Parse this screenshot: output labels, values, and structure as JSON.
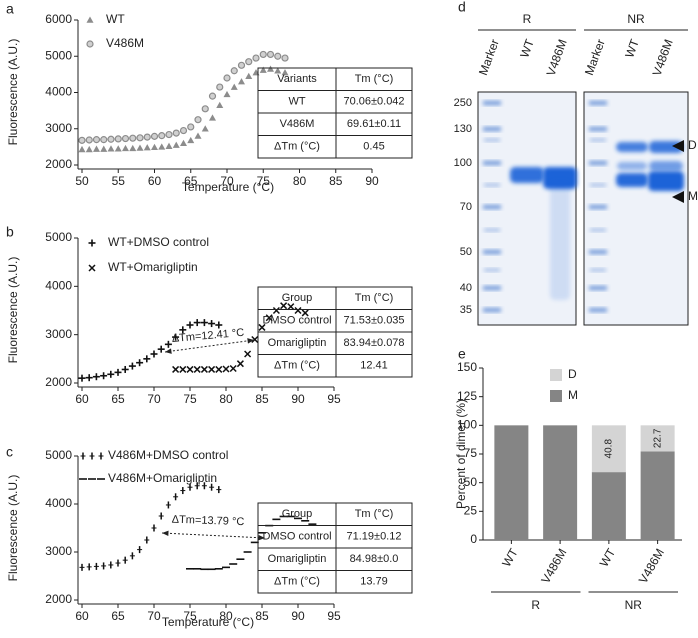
{
  "chart_data": [
    {
      "type": "scatter",
      "panel": "a",
      "xlabel": "Temperature (°C)",
      "ylabel": "Fluorescence (A.U.)",
      "xlim": [
        50,
        90
      ],
      "xticks": [
        50,
        55,
        60,
        65,
        70,
        75,
        80,
        85,
        90
      ],
      "ylim": [
        2000,
        6000
      ],
      "yticks": [
        2000,
        3000,
        4000,
        5000,
        6000
      ],
      "series": [
        {
          "name": "WT",
          "color": "#8c8c8c",
          "marker": "triangle",
          "x": [
            50,
            51,
            52,
            53,
            54,
            55,
            56,
            57,
            58,
            59,
            60,
            61,
            62,
            63,
            64,
            65,
            66,
            67,
            68,
            69,
            70,
            71,
            72,
            73,
            74,
            75,
            76,
            77,
            78
          ],
          "values": [
            2430,
            2430,
            2440,
            2440,
            2450,
            2450,
            2460,
            2460,
            2470,
            2480,
            2490,
            2500,
            2520,
            2550,
            2600,
            2680,
            2800,
            3000,
            3300,
            3650,
            3950,
            4150,
            4300,
            4450,
            4550,
            4620,
            4650,
            4600,
            4550
          ]
        },
        {
          "name": "V486M",
          "color": "#8c8c8c",
          "marker": "circle",
          "x": [
            50,
            51,
            52,
            53,
            54,
            55,
            56,
            57,
            58,
            59,
            60,
            61,
            62,
            63,
            64,
            65,
            66,
            67,
            68,
            69,
            70,
            71,
            72,
            73,
            74,
            75,
            76,
            77,
            78
          ],
          "values": [
            2680,
            2690,
            2700,
            2700,
            2710,
            2720,
            2730,
            2740,
            2750,
            2770,
            2790,
            2810,
            2840,
            2880,
            2950,
            3050,
            3250,
            3550,
            3900,
            4150,
            4400,
            4600,
            4750,
            4850,
            4950,
            5050,
            5050,
            5000,
            4950
          ]
        }
      ],
      "table": {
        "header": [
          "Variants",
          "Tm (°C)"
        ],
        "rows": [
          [
            "WT",
            "70.06±0.042"
          ],
          [
            "V486M",
            "69.61±0.11"
          ],
          [
            "ΔTm  (°C)",
            "0.45"
          ]
        ]
      }
    },
    {
      "type": "scatter",
      "panel": "b",
      "xlabel": "",
      "ylabel": "Fluorescence (A.U.)",
      "xlim": [
        60,
        95
      ],
      "xticks": [
        60,
        65,
        70,
        75,
        80,
        85,
        90,
        95
      ],
      "ylim": [
        2000,
        5000
      ],
      "yticks": [
        2000,
        3000,
        4000,
        5000
      ],
      "annotation": "ΔTm=12.41 °C",
      "series": [
        {
          "name": "WT+DMSO control",
          "color": "#111111",
          "marker": "plus",
          "x": [
            60,
            61,
            62,
            63,
            64,
            65,
            66,
            67,
            68,
            69,
            70,
            71,
            72,
            73,
            74,
            75,
            76,
            77,
            78,
            79
          ],
          "values": [
            2100,
            2110,
            2130,
            2150,
            2180,
            2220,
            2280,
            2350,
            2420,
            2500,
            2600,
            2700,
            2800,
            2950,
            3100,
            3200,
            3250,
            3250,
            3230,
            3200
          ]
        },
        {
          "name": "WT+Omarigliptin",
          "color": "#111111",
          "marker": "x",
          "x": [
            73,
            74,
            75,
            76,
            77,
            78,
            79,
            80,
            81,
            82,
            83,
            84,
            85,
            86,
            87,
            88,
            89,
            90,
            91
          ],
          "values": [
            2280,
            2280,
            2280,
            2280,
            2280,
            2280,
            2280,
            2290,
            2300,
            2400,
            2600,
            2900,
            3150,
            3350,
            3500,
            3600,
            3580,
            3500,
            3450
          ]
        }
      ],
      "table": {
        "header": [
          "Group",
          "Tm (°C)"
        ],
        "rows": [
          [
            "DMSO control",
            "71.53±0.035"
          ],
          [
            "Omarigliptin",
            "83.94±0.078"
          ],
          [
            "ΔTm (°C)",
            "12.41"
          ]
        ]
      }
    },
    {
      "type": "scatter",
      "panel": "c",
      "xlabel": "Temperature (°C)",
      "ylabel": "Fluorescence (A.U.)",
      "xlim": [
        60,
        95
      ],
      "xticks": [
        60,
        65,
        70,
        75,
        80,
        85,
        90,
        95
      ],
      "ylim": [
        2000,
        5000
      ],
      "yticks": [
        2000,
        3000,
        4000,
        5000
      ],
      "annotation": "ΔTm=13.79 °C",
      "series": [
        {
          "name": "V486M+DMSO control",
          "color": "#111111",
          "marker": "vtick",
          "x": [
            60,
            61,
            62,
            63,
            64,
            65,
            66,
            67,
            68,
            69,
            70,
            71,
            72,
            73,
            74,
            75,
            76,
            77,
            78,
            79
          ],
          "values": [
            2680,
            2690,
            2700,
            2710,
            2730,
            2770,
            2830,
            2920,
            3050,
            3250,
            3500,
            3750,
            3980,
            4150,
            4280,
            4350,
            4380,
            4380,
            4350,
            4300
          ]
        },
        {
          "name": "V486M+Omarigliptin",
          "color": "#111111",
          "marker": "hdash",
          "x": [
            75,
            76,
            77,
            78,
            79,
            80,
            81,
            82,
            83,
            84,
            85,
            86,
            87,
            88,
            89,
            90,
            91,
            92
          ],
          "values": [
            2650,
            2650,
            2640,
            2640,
            2650,
            2680,
            2750,
            2850,
            3000,
            3200,
            3400,
            3550,
            3680,
            3740,
            3740,
            3700,
            3650,
            3580
          ]
        }
      ],
      "table": {
        "header": [
          "Group",
          "Tm (°C)"
        ],
        "rows": [
          [
            "DMSO control",
            "71.19±0.12"
          ],
          [
            "Omarigliptin",
            "84.98±0.0"
          ],
          [
            "ΔTm (°C)",
            "13.79"
          ]
        ]
      }
    },
    {
      "type": "stacked_bar",
      "panel": "e",
      "ylabel": "Percent of dimer (%)",
      "categories": [
        "WT",
        "V486M",
        "WT",
        "V486M"
      ],
      "groups": [
        "R",
        "R",
        "NR",
        "NR"
      ],
      "ylim": [
        0,
        150
      ],
      "yticks": [
        0,
        25,
        50,
        75,
        100,
        125,
        150
      ],
      "series": [
        {
          "name": "M",
          "color": "#858585",
          "values": [
            100,
            100,
            59.2,
            77.3
          ]
        },
        {
          "name": "D",
          "color": "#d4d4d4",
          "values": [
            0,
            0,
            40.8,
            22.7
          ]
        }
      ]
    }
  ],
  "gel": {
    "panel": "d",
    "groups": [
      "R",
      "NR"
    ],
    "lanes": [
      "Marker",
      "WT",
      "V486M",
      "Marker",
      "WT",
      "V486M"
    ],
    "mw": [
      250,
      130,
      100,
      70,
      50,
      40,
      35
    ],
    "arrows": [
      "D",
      "M"
    ]
  }
}
